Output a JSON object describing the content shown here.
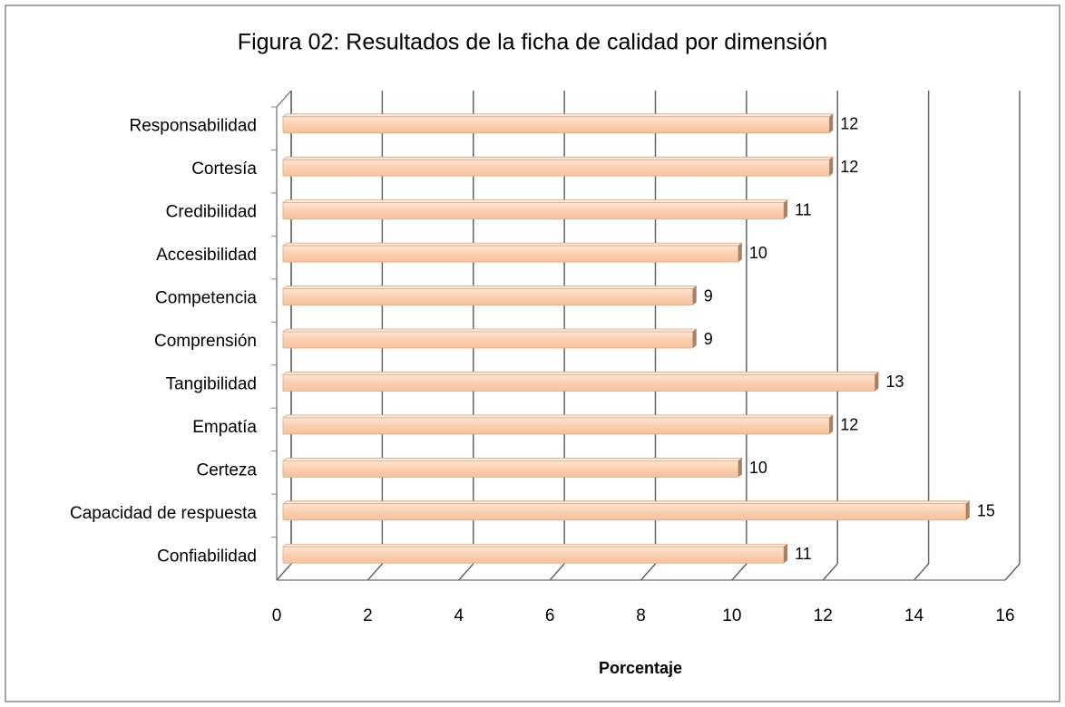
{
  "chart_data": {
    "type": "bar",
    "orientation": "horizontal",
    "title": "Figura 02: Resultados de la ficha de calidad por dimensión",
    "x_label": "Porcentaje",
    "categories": [
      "Responsabilidad",
      "Cortesía",
      "Credibilidad",
      "Accesibilidad",
      "Competencia",
      "Comprensión",
      "Tangibilidad",
      "Empatía",
      "Certeza",
      "Capacidad de respuesta",
      "Confiabilidad"
    ],
    "values": [
      12,
      12,
      11,
      10,
      9,
      9,
      13,
      12,
      10,
      15,
      11
    ],
    "color": "#fccfae",
    "xlim": [
      0,
      16
    ],
    "xticks": [
      0,
      2,
      4,
      6,
      8,
      10,
      12,
      14,
      16
    ],
    "grid": true
  }
}
